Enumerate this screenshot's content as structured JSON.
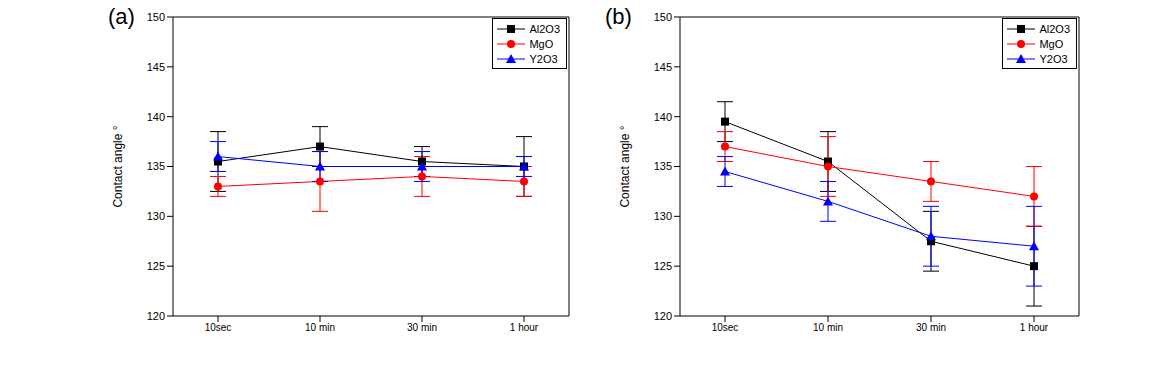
{
  "chart_data": [
    {
      "type": "line",
      "title": "(a)",
      "ylabel": "Contact angle °",
      "legend": "upper right",
      "categories": [
        "10sec",
        "10 min",
        "30 min",
        "1 hour"
      ],
      "ylim": [
        120,
        150
      ],
      "yticks": [
        120,
        125,
        130,
        135,
        140,
        145,
        150
      ],
      "grid": false,
      "series": [
        {
          "name": "Al2O3",
          "color": "#000000",
          "marker": "square",
          "values": [
            135.5,
            137,
            135.5,
            135
          ],
          "errors": [
            3,
            2,
            1.5,
            3
          ]
        },
        {
          "name": "MgO",
          "color": "#ff0000",
          "marker": "circle",
          "values": [
            133,
            133.5,
            134,
            133.5
          ],
          "errors": [
            1,
            3,
            2,
            1.5
          ]
        },
        {
          "name": "Y2O3",
          "color": "#0000ff",
          "marker": "triangle",
          "values": [
            136,
            135,
            135,
            135
          ],
          "errors": [
            1.5,
            1.5,
            1.5,
            1
          ]
        }
      ]
    },
    {
      "type": "line",
      "title": "(b)",
      "ylabel": "Contact angle °",
      "legend": "upper right",
      "categories": [
        "10sec",
        "10 min",
        "30 min",
        "1 hour"
      ],
      "ylim": [
        120,
        150
      ],
      "yticks": [
        120,
        125,
        130,
        135,
        140,
        145,
        150
      ],
      "grid": false,
      "series": [
        {
          "name": "Al2O3",
          "color": "#000000",
          "marker": "square",
          "values": [
            139.5,
            135.5,
            127.5,
            125
          ],
          "errors": [
            2,
            3,
            3,
            4
          ]
        },
        {
          "name": "MgO",
          "color": "#ff0000",
          "marker": "circle",
          "values": [
            137,
            135,
            133.5,
            132
          ],
          "errors": [
            1.5,
            3,
            2,
            3
          ]
        },
        {
          "name": "Y2O3",
          "color": "#0000ff",
          "marker": "triangle",
          "values": [
            134.5,
            131.5,
            128,
            127
          ],
          "errors": [
            1.5,
            2,
            3,
            4
          ]
        }
      ]
    }
  ]
}
